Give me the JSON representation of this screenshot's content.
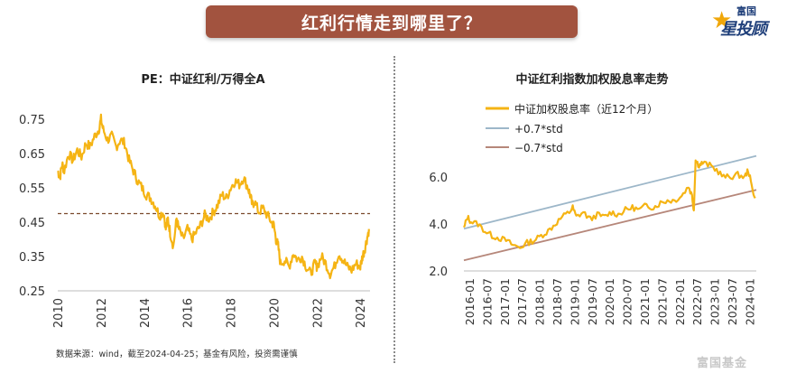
{
  "banner": {
    "title": "红利行情走到哪里了？"
  },
  "logo": {
    "line1": "富国",
    "line2": "星投顾"
  },
  "footer": {
    "source": "数据来源：wind，截至2024-04-25；基金有风险，投资需谨慎"
  },
  "watermark": {
    "text": "富国基金"
  },
  "colors": {
    "series": "#f5b414",
    "band_upper": "#9db7c9",
    "band_lower": "#b6877a",
    "mean": "#7a4a2c",
    "banner": "#a2533f"
  },
  "chart_data": [
    {
      "type": "line",
      "title": "PE：中证红利/万得全A",
      "xlabel": "",
      "ylabel": "",
      "xlim": [
        2010.0,
        2024.45
      ],
      "ylim": [
        0.25,
        0.75
      ],
      "yticks": [
        "0.75",
        "0.65",
        "0.55",
        "0.45",
        "0.35",
        "0.25"
      ],
      "xticks": [
        "2010",
        "2012",
        "2014",
        "2016",
        "2018",
        "2020",
        "2022",
        "2024"
      ],
      "mean_line": 0.475,
      "series": [
        {
          "name": "PE ratio",
          "x": [
            2010.0,
            2010.1,
            2010.2,
            2010.3,
            2010.5,
            2010.7,
            2010.9,
            2011.1,
            2011.3,
            2011.5,
            2011.7,
            2011.9,
            2012.0,
            2012.1,
            2012.3,
            2012.5,
            2012.7,
            2012.9,
            2013.1,
            2013.3,
            2013.5,
            2013.7,
            2013.9,
            2014.1,
            2014.3,
            2014.5,
            2014.7,
            2014.9,
            2015.0,
            2015.1,
            2015.2,
            2015.35,
            2015.5,
            2015.6,
            2015.8,
            2016.0,
            2016.2,
            2016.4,
            2016.6,
            2016.8,
            2017.0,
            2017.2,
            2017.4,
            2017.6,
            2017.8,
            2018.0,
            2018.2,
            2018.4,
            2018.6,
            2018.8,
            2018.9,
            2019.0,
            2019.1,
            2019.3,
            2019.5,
            2019.7,
            2019.9,
            2020.0,
            2020.1,
            2020.2,
            2020.3,
            2020.5,
            2020.7,
            2020.9,
            2021.1,
            2021.3,
            2021.5,
            2021.7,
            2021.9,
            2022.0,
            2022.2,
            2022.4,
            2022.6,
            2022.8,
            2023.0,
            2023.2,
            2023.4,
            2023.6,
            2023.8,
            2024.0,
            2024.1,
            2024.2,
            2024.3,
            2024.4
          ],
          "values": [
            0.6,
            0.58,
            0.62,
            0.6,
            0.65,
            0.63,
            0.66,
            0.64,
            0.68,
            0.67,
            0.7,
            0.72,
            0.75,
            0.72,
            0.69,
            0.7,
            0.67,
            0.69,
            0.68,
            0.63,
            0.6,
            0.57,
            0.55,
            0.53,
            0.52,
            0.5,
            0.47,
            0.48,
            0.43,
            0.46,
            0.42,
            0.38,
            0.46,
            0.43,
            0.4,
            0.43,
            0.4,
            0.42,
            0.44,
            0.47,
            0.46,
            0.48,
            0.5,
            0.53,
            0.52,
            0.55,
            0.57,
            0.56,
            0.58,
            0.55,
            0.53,
            0.5,
            0.51,
            0.48,
            0.49,
            0.47,
            0.45,
            0.44,
            0.4,
            0.38,
            0.33,
            0.34,
            0.32,
            0.36,
            0.34,
            0.35,
            0.32,
            0.3,
            0.33,
            0.32,
            0.35,
            0.33,
            0.3,
            0.32,
            0.36,
            0.34,
            0.32,
            0.31,
            0.33,
            0.32,
            0.35,
            0.37,
            0.4,
            0.43
          ]
        }
      ]
    },
    {
      "type": "line",
      "title": "中证红利指数加权股息率走势",
      "xlabel": "",
      "ylabel": "",
      "xlim": [
        2016.0,
        2024.33
      ],
      "ylim": [
        2.0,
        7.0
      ],
      "yticks": [
        "6.0",
        "4.0",
        "2.0"
      ],
      "xticks": [
        "2016-01",
        "2016-07",
        "2017-01",
        "2017-07",
        "2018-01",
        "2018-07",
        "2019-01",
        "2019-07",
        "2020-01",
        "2020-07",
        "2021-01",
        "2021-07",
        "2022-01",
        "2022-07",
        "2023-01",
        "2023-07",
        "2024-01"
      ],
      "legend": [
        "中证加权股息率（近12个月）",
        "+0.7*std",
        "−0.7*std"
      ],
      "bands": [
        {
          "name": "+0.7*std",
          "x": [
            2016.0,
            2024.33
          ],
          "values": [
            3.8,
            6.9
          ]
        },
        {
          "name": "−0.7*std",
          "x": [
            2016.0,
            2024.33
          ],
          "values": [
            2.45,
            5.45
          ]
        }
      ],
      "series": [
        {
          "name": "中证加权股息率（近12个月）",
          "x": [
            2016.0,
            2016.1,
            2016.2,
            2016.4,
            2016.6,
            2016.8,
            2017.0,
            2017.2,
            2017.4,
            2017.6,
            2017.8,
            2018.0,
            2018.2,
            2018.4,
            2018.6,
            2018.8,
            2019.0,
            2019.1,
            2019.2,
            2019.4,
            2019.6,
            2019.8,
            2020.0,
            2020.2,
            2020.4,
            2020.6,
            2020.8,
            2021.0,
            2021.2,
            2021.4,
            2021.6,
            2021.8,
            2022.0,
            2022.2,
            2022.4,
            2022.5,
            2022.55,
            2022.6,
            2022.7,
            2022.8,
            2023.0,
            2023.2,
            2023.4,
            2023.6,
            2023.8,
            2024.0,
            2024.1,
            2024.2,
            2024.3
          ],
          "values": [
            3.8,
            4.3,
            4.1,
            4.0,
            3.7,
            3.5,
            3.4,
            3.3,
            3.1,
            3.0,
            3.2,
            3.3,
            3.5,
            3.7,
            4.0,
            4.3,
            4.5,
            4.7,
            4.3,
            4.5,
            4.2,
            4.4,
            4.3,
            4.5,
            4.4,
            4.6,
            4.7,
            4.6,
            4.8,
            4.7,
            4.9,
            5.0,
            5.0,
            5.2,
            5.6,
            5.2,
            4.6,
            6.7,
            6.5,
            6.6,
            6.5,
            6.3,
            6.0,
            6.0,
            6.1,
            6.0,
            6.3,
            5.6,
            5.1
          ]
        }
      ]
    }
  ]
}
